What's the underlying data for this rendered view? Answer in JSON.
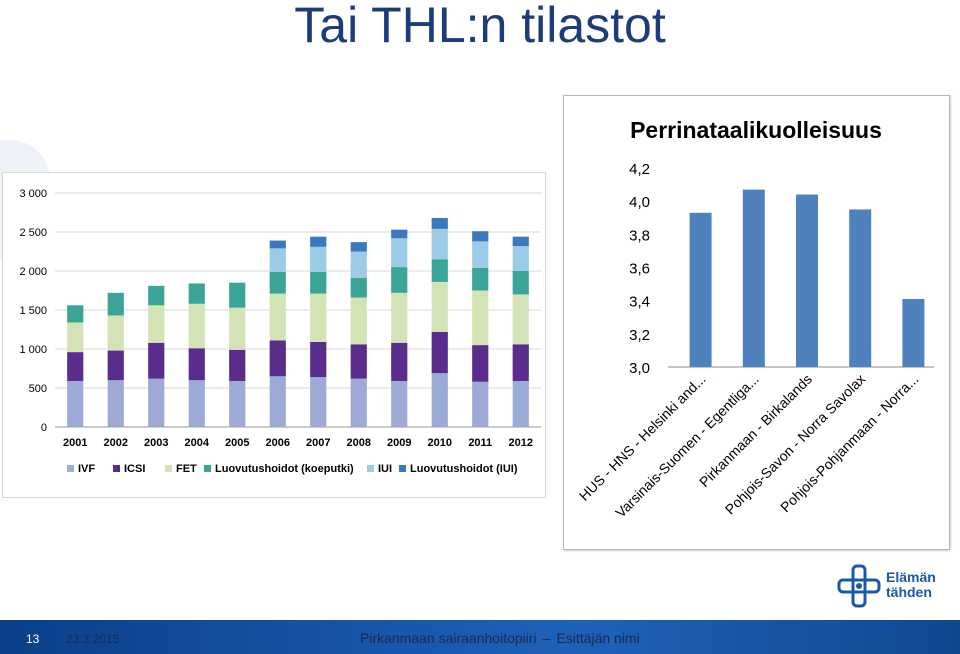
{
  "slide": {
    "title": "Tai THL:n tilastot",
    "page_number": "13",
    "date": "23.3.2015",
    "organization": "Pirkanmaan sairaanhoitopiiri",
    "separator": "–",
    "presenter": "Esittäjän nimi",
    "logo_line1": "Elämän",
    "logo_line2": "tähden"
  },
  "colors": {
    "IVF": "#9eaad6",
    "ICSI": "#5a2d8c",
    "FET": "#d4e3b6",
    "Luovutushoidot (koeputki)": "#3aa596",
    "IUI": "#9ccbe6",
    "Luovutushoidot (IUI)": "#3b78bd",
    "right_bar": "#4f81bd",
    "title_color": "#1f3c7a",
    "footer": "#1e62b8"
  },
  "chart_data": [
    {
      "type": "bar",
      "stacked": true,
      "title": "",
      "xlabel": "",
      "ylabel": "",
      "categories": [
        "2001",
        "2002",
        "2003",
        "2004",
        "2005",
        "2006",
        "2007",
        "2008",
        "2009",
        "2010",
        "2011",
        "2012"
      ],
      "series": [
        {
          "name": "IVF",
          "values": [
            590,
            600,
            620,
            600,
            590,
            650,
            640,
            620,
            590,
            690,
            580,
            590
          ]
        },
        {
          "name": "ICSI",
          "values": [
            370,
            380,
            460,
            410,
            400,
            460,
            450,
            440,
            490,
            530,
            470,
            470
          ]
        },
        {
          "name": "FET",
          "values": [
            380,
            450,
            480,
            570,
            540,
            600,
            620,
            600,
            640,
            640,
            700,
            640
          ]
        },
        {
          "name": "Luovutushoidot (koeputki)",
          "values": [
            220,
            290,
            250,
            260,
            320,
            280,
            280,
            250,
            330,
            290,
            290,
            300
          ]
        },
        {
          "name": "IUI",
          "values": [
            0,
            0,
            0,
            0,
            0,
            300,
            320,
            340,
            370,
            390,
            340,
            320
          ]
        },
        {
          "name": "Luovutushoidot (IUI)",
          "values": [
            0,
            0,
            0,
            0,
            0,
            100,
            130,
            120,
            110,
            140,
            130,
            120
          ]
        }
      ],
      "ylim": [
        0,
        3000
      ],
      "yticks": [
        0,
        500,
        1000,
        1500,
        2000,
        2500,
        3000
      ],
      "ytick_labels": [
        "0",
        "500",
        "1 000",
        "1 500",
        "2 000",
        "2 500",
        "3 000"
      ],
      "grid": true,
      "legend": "bottom"
    },
    {
      "type": "bar",
      "title": "Perrinataalikuolleisuus",
      "xlabel": "",
      "ylabel": "",
      "categories": [
        "HUS - HNS - Helsinki and...",
        "Varsinais-Suomen - Egentliga...",
        "Pirkanmaan - Birkalands",
        "Pohjois-Savon - Norra Savolax",
        "Pohjois-Pohjanmaan - Norra..."
      ],
      "values": [
        3.93,
        4.07,
        4.04,
        3.95,
        3.41
      ],
      "ylim": [
        3.0,
        4.2
      ],
      "yticks": [
        3.0,
        3.2,
        3.4,
        3.6,
        3.8,
        4.0,
        4.2
      ],
      "ytick_labels": [
        "3,0",
        "3,2",
        "3,4",
        "3,6",
        "3,8",
        "4,0",
        "4,2"
      ],
      "grid": false,
      "legend": "none"
    }
  ]
}
